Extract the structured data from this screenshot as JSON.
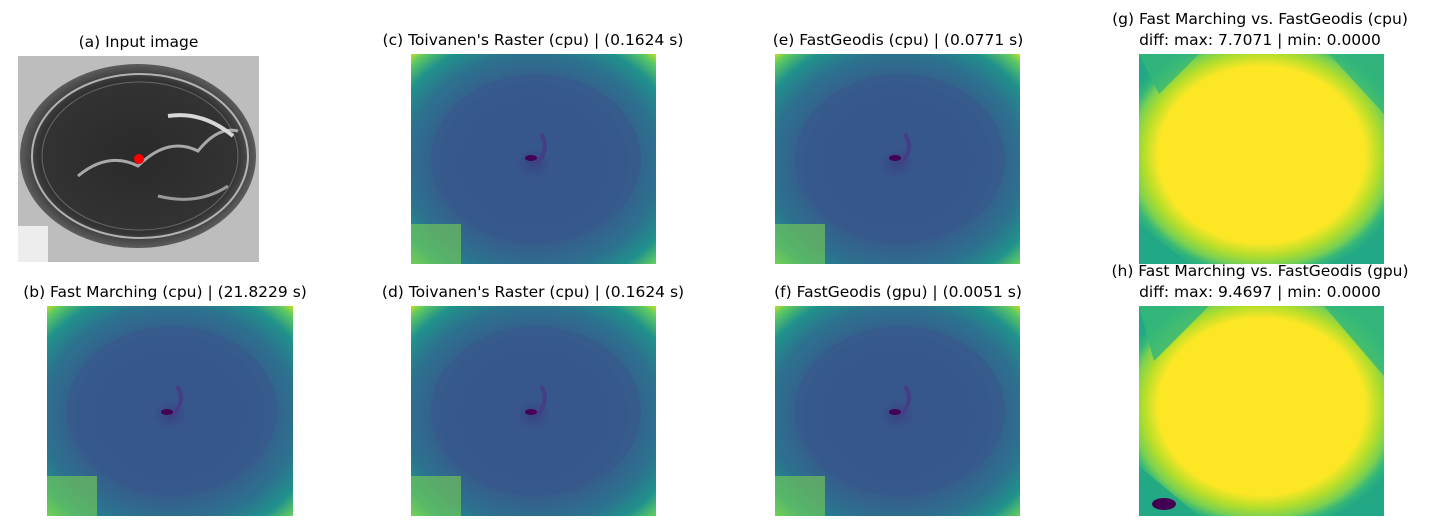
{
  "panels": {
    "a": {
      "title": "(a) Input image"
    },
    "b": {
      "title": "(b) Fast Marching (cpu) | (21.8229 s)"
    },
    "c": {
      "title": "(c) Toivanen's Raster (cpu) | (0.1624 s)"
    },
    "d": {
      "title": "(d) Toivanen's Raster (cpu) | (0.1624 s)"
    },
    "e": {
      "title": "(e) FastGeodis (cpu) | (0.0771 s)"
    },
    "f": {
      "title": "(f) FastGeodis (gpu) | (0.0051 s)"
    },
    "g": {
      "title_line1": "(g) Fast Marching vs. FastGeodis (cpu)",
      "title_line2": "diff: max: 7.7071 | min: 0.0000"
    },
    "h": {
      "title_line1": "(h) Fast Marching vs. FastGeodis (gpu)",
      "title_line2": "diff: max: 9.4697 | min: 0.0000"
    }
  },
  "colors": {
    "seed_point": "#ff0000",
    "viridis_dark": "#440154",
    "viridis_blue": "#3b528b",
    "viridis_teal": "#21918c",
    "viridis_green": "#5ec962",
    "viridis_yellow": "#fde725"
  }
}
